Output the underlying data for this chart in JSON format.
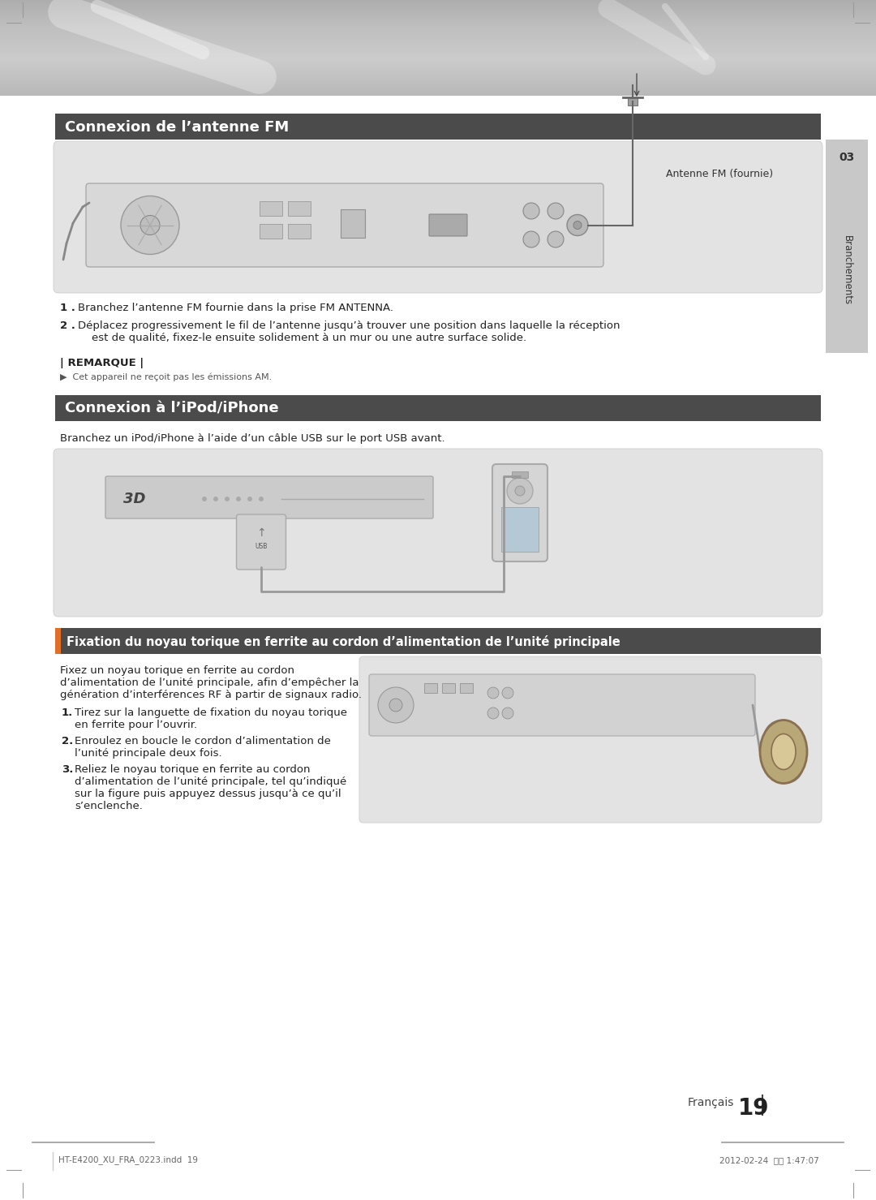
{
  "bg_color": "#ffffff",
  "section_header_color": "#4a4a4a",
  "section_header_text_color": "#ffffff",
  "section_header_font_size": 13,
  "body_font_size": 9.5,
  "small_font_size": 8.5,
  "note_font_size": 8,
  "diagram_bg": "#e2e2e2",
  "sidebar_text": "Branchements",
  "sidebar_num": "03",
  "page_num": "19",
  "footer_left": "HT-E4200_XU_FRA_0223.indd  19",
  "footer_right": "2012-02-24  오전 1:47:07",
  "section1_title": "Connexion de l’antenne FM",
  "section1_diagram_label": "Antenne FM (fournie)",
  "section1_item1": "Branchez l’antenne FM fournie dans la prise FM ANTENNA.",
  "section1_item2": "Déplacez progressivement le fil de l’antenne jusqu’à trouver une position dans laquelle la réception\n    est de qualité, fixez-le ensuite solidement à un mur ou une autre surface solide.",
  "remarque_label": "| REMARQUE |",
  "remarque_text": "▶  Cet appareil ne reçoit pas les émissions AM.",
  "section2_title": "Connexion à l’iPod/iPhone",
  "section2_intro": "Branchez un iPod/iPhone à l’aide d’un câble USB sur le port USB avant.",
  "section3_title": "Fixation du noyau torique en ferrite au cordon d’alimentation de l’unité principale",
  "section3_intro": "Fixez un noyau torique en ferrite au cordon\nd’alimentation de l’unité principale, afin d’empêcher la\ngénération d’interférences RF à partir de signaux radio.",
  "section3_item1": "Tirez sur la languette de fixation du noyau torique\nen ferrite pour l’ouvrir.",
  "section3_item2": "Enroulez en boucle le cordon d’alimentation de\nl’unité principale deux fois.",
  "section3_item3": "Reliez le noyau torique en ferrite au cordon\nd’alimentation de l’unité principale, tel qu’indiqué\nsur la figure puis appuyez dessus jusqu’à ce qu’il\ns’enclenche.",
  "francais_text": "Français",
  "francais_num": "19"
}
